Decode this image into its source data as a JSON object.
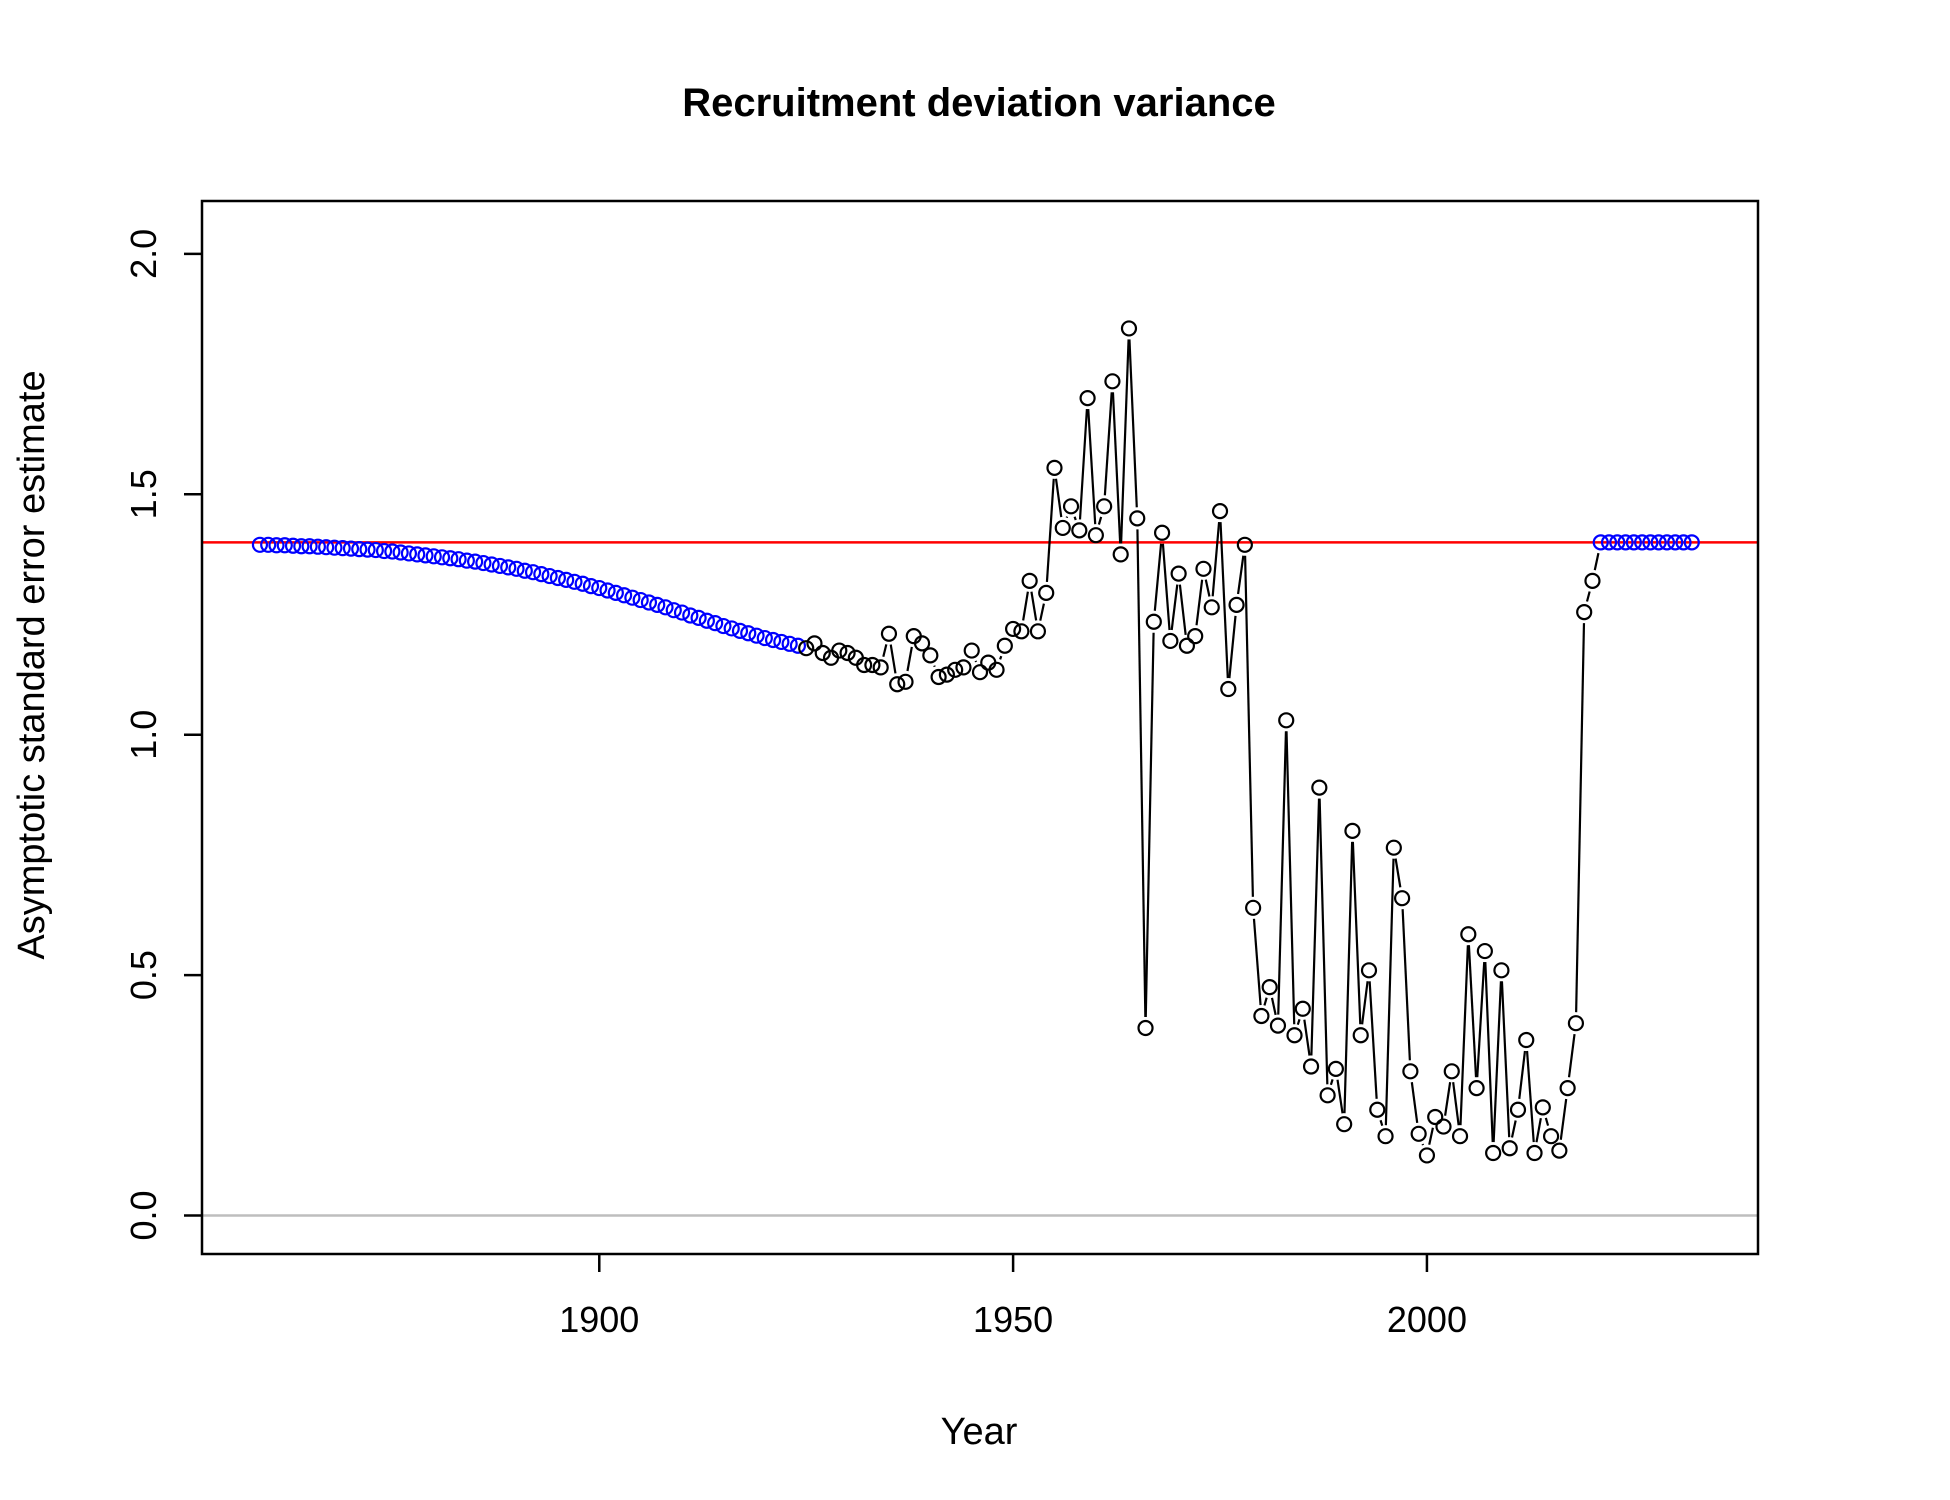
{
  "chart_data": {
    "type": "scatter",
    "title": "Recruitment deviation variance",
    "xlabel": "Year",
    "ylabel": "Asymptotic standard error estimate",
    "xlim": [
      1852,
      2040
    ],
    "ylim": [
      -0.08,
      2.11
    ],
    "x_ticks": [
      1900,
      1950,
      2000
    ],
    "x_tick_labels": [
      "1900",
      "1950",
      "2000"
    ],
    "y_ticks": [
      0.0,
      0.5,
      1.0,
      1.5,
      2.0
    ],
    "y_tick_labels": [
      "0.0",
      "0.5",
      "1.0",
      "1.5",
      "2.0"
    ],
    "reference_lines": [
      {
        "y": 1.4,
        "color": "#ff0000"
      },
      {
        "y": 0.0,
        "color": "#bebebe"
      }
    ],
    "point_colors": {
      "early_and_forecast": "#0000ff",
      "main": "#000000"
    },
    "series": [
      {
        "points": "early",
        "x_start": 1859,
        "x_end": 1924,
        "y": [
          1.395,
          1.395,
          1.394,
          1.394,
          1.393,
          1.392,
          1.392,
          1.391,
          1.39,
          1.389,
          1.388,
          1.387,
          1.386,
          1.385,
          1.384,
          1.382,
          1.381,
          1.379,
          1.377,
          1.375,
          1.373,
          1.371,
          1.369,
          1.367,
          1.365,
          1.362,
          1.36,
          1.357,
          1.354,
          1.351,
          1.348,
          1.345,
          1.341,
          1.338,
          1.334,
          1.33,
          1.326,
          1.322,
          1.318,
          1.314,
          1.309,
          1.305,
          1.3,
          1.295,
          1.29,
          1.285,
          1.28,
          1.275,
          1.27,
          1.265,
          1.259,
          1.254,
          1.248,
          1.243,
          1.237,
          1.232,
          1.226,
          1.221,
          1.216,
          1.211,
          1.206,
          1.201,
          1.197,
          1.193,
          1.189,
          1.185
        ]
      },
      {
        "points": "main",
        "x_start": 1925,
        "x_end": 2020,
        "y": [
          1.18,
          1.19,
          1.17,
          1.16,
          1.175,
          1.17,
          1.16,
          1.145,
          1.145,
          1.14,
          1.21,
          1.105,
          1.11,
          1.205,
          1.19,
          1.165,
          1.12,
          1.125,
          1.135,
          1.14,
          1.175,
          1.13,
          1.15,
          1.135,
          1.185,
          1.22,
          1.215,
          1.32,
          1.215,
          1.295,
          1.555,
          1.43,
          1.475,
          1.425,
          1.7,
          1.415,
          1.475,
          1.735,
          1.375,
          1.845,
          1.45,
          0.39,
          1.235,
          1.42,
          1.195,
          1.335,
          1.185,
          1.205,
          1.345,
          1.265,
          1.465,
          1.095,
          1.27,
          1.395,
          0.64,
          0.415,
          0.475,
          0.395,
          1.03,
          0.375,
          0.43,
          0.31,
          0.89,
          0.25,
          0.305,
          0.19,
          0.8,
          0.375,
          0.51,
          0.22,
          0.165,
          0.765,
          0.66,
          0.3,
          0.17,
          0.125,
          0.205,
          0.185,
          0.3,
          0.165,
          0.585,
          0.265,
          0.55,
          0.13,
          0.51,
          0.14,
          0.22,
          0.365,
          0.13,
          0.225,
          0.165,
          0.135,
          0.265,
          0.4,
          1.255,
          1.32
        ]
      },
      {
        "points": "forecast",
        "x_start": 2021,
        "x_end": 2032,
        "y": [
          1.4,
          1.4,
          1.4,
          1.4,
          1.4,
          1.4,
          1.4,
          1.4,
          1.4,
          1.4,
          1.4,
          1.4
        ]
      }
    ]
  }
}
